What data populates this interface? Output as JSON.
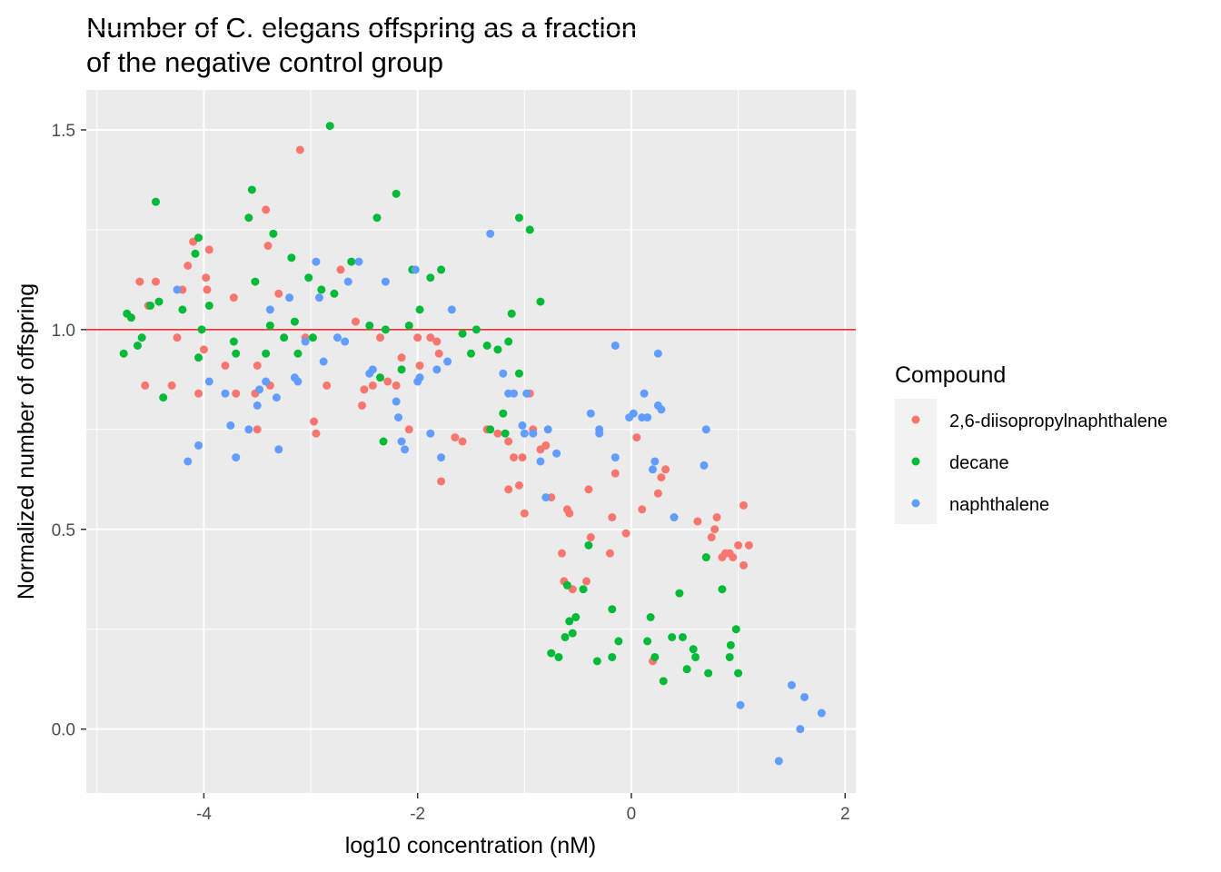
{
  "chart_data": {
    "type": "scatter",
    "title_lines": [
      "Number of C. elegans offspring as a fraction",
      "of the negative control group"
    ],
    "xlabel": "log10 concentration (nM)",
    "ylabel": "Normalized number of offspring",
    "xlim": [
      -5.1,
      2.1
    ],
    "ylim": [
      -0.16,
      1.6
    ],
    "x_ticks": [
      -4,
      -2,
      0,
      2
    ],
    "x_tick_labels": [
      "-4",
      "-2",
      "0",
      "2"
    ],
    "y_ticks": [
      0.0,
      0.5,
      1.0,
      1.5
    ],
    "y_tick_labels": [
      "0.0",
      "0.5",
      "1.0",
      "1.5"
    ],
    "grid": true,
    "reference_line": {
      "y": 1.0,
      "color": "#e41a1c"
    },
    "legend": {
      "title": "Compound",
      "position": "right"
    },
    "series": [
      {
        "name": "2,6-diisopropylnaphthalene",
        "color": "#F8766D",
        "points": [
          [
            -4.6,
            1.12
          ],
          [
            -4.55,
            0.86
          ],
          [
            -4.52,
            1.06
          ],
          [
            -4.45,
            1.12
          ],
          [
            -4.3,
            0.86
          ],
          [
            -4.25,
            0.98
          ],
          [
            -4.2,
            1.1
          ],
          [
            -4.15,
            1.16
          ],
          [
            -4.1,
            1.22
          ],
          [
            -4.05,
            0.84
          ],
          [
            -4.0,
            0.95
          ],
          [
            -3.98,
            1.13
          ],
          [
            -3.97,
            1.1
          ],
          [
            -3.95,
            1.2
          ],
          [
            -3.8,
            0.91
          ],
          [
            -3.72,
            1.08
          ],
          [
            -3.7,
            0.84
          ],
          [
            -3.52,
            0.84
          ],
          [
            -3.5,
            0.91
          ],
          [
            -3.5,
            0.75
          ],
          [
            -3.42,
            1.3
          ],
          [
            -3.4,
            1.21
          ],
          [
            -3.38,
            0.86
          ],
          [
            -3.3,
            1.09
          ],
          [
            -3.1,
            1.45
          ],
          [
            -3.05,
            0.98
          ],
          [
            -2.97,
            0.77
          ],
          [
            -2.95,
            0.74
          ],
          [
            -2.85,
            0.86
          ],
          [
            -2.72,
            1.15
          ],
          [
            -2.58,
            1.02
          ],
          [
            -2.52,
            0.81
          ],
          [
            -2.5,
            0.85
          ],
          [
            -2.42,
            0.86
          ],
          [
            -2.35,
            0.98
          ],
          [
            -2.28,
            0.87
          ],
          [
            -2.2,
            0.86
          ],
          [
            -2.15,
            0.93
          ],
          [
            -2.08,
            0.75
          ],
          [
            -2.0,
            0.98
          ],
          [
            -1.98,
            0.91
          ],
          [
            -1.88,
            0.98
          ],
          [
            -1.82,
            0.97
          ],
          [
            -1.8,
            0.94
          ],
          [
            -1.78,
            0.62
          ],
          [
            -1.65,
            0.73
          ],
          [
            -1.58,
            0.72
          ],
          [
            -1.35,
            0.75
          ],
          [
            -1.25,
            0.74
          ],
          [
            -1.15,
            0.72
          ],
          [
            -1.15,
            0.6
          ],
          [
            -1.1,
            0.68
          ],
          [
            -1.05,
            0.61
          ],
          [
            -1.02,
            0.68
          ],
          [
            -1.0,
            0.54
          ],
          [
            -0.95,
            0.84
          ],
          [
            -0.92,
            0.75
          ],
          [
            -0.85,
            0.7
          ],
          [
            -0.8,
            0.71
          ],
          [
            -0.75,
            0.58
          ],
          [
            -0.65,
            0.44
          ],
          [
            -0.63,
            0.37
          ],
          [
            -0.6,
            0.55
          ],
          [
            -0.58,
            0.54
          ],
          [
            -0.55,
            0.35
          ],
          [
            -0.42,
            0.37
          ],
          [
            -0.38,
            0.48
          ],
          [
            -0.4,
            0.6
          ],
          [
            -0.2,
            0.44
          ],
          [
            -0.18,
            0.53
          ],
          [
            -0.15,
            0.64
          ],
          [
            -0.05,
            0.49
          ],
          [
            0.05,
            0.73
          ],
          [
            0.1,
            0.55
          ],
          [
            0.2,
            0.17
          ],
          [
            0.25,
            0.59
          ],
          [
            0.28,
            0.63
          ],
          [
            0.32,
            0.65
          ],
          [
            0.62,
            0.52
          ],
          [
            0.75,
            0.48
          ],
          [
            0.78,
            0.5
          ],
          [
            0.8,
            0.53
          ],
          [
            0.85,
            0.43
          ],
          [
            0.88,
            0.44
          ],
          [
            0.92,
            0.44
          ],
          [
            0.95,
            0.43
          ],
          [
            1.0,
            0.46
          ],
          [
            1.05,
            0.56
          ],
          [
            1.05,
            0.41
          ],
          [
            1.1,
            0.46
          ]
        ]
      },
      {
        "name": "decane",
        "color": "#00BA38",
        "points": [
          [
            -4.75,
            0.94
          ],
          [
            -4.72,
            1.04
          ],
          [
            -4.68,
            1.03
          ],
          [
            -4.62,
            0.96
          ],
          [
            -4.58,
            0.98
          ],
          [
            -4.5,
            1.06
          ],
          [
            -4.42,
            1.07
          ],
          [
            -4.45,
            1.32
          ],
          [
            -4.38,
            0.83
          ],
          [
            -4.2,
            1.05
          ],
          [
            -4.08,
            1.19
          ],
          [
            -4.05,
            1.23
          ],
          [
            -4.05,
            0.93
          ],
          [
            -4.02,
            1.0
          ],
          [
            -3.95,
            1.06
          ],
          [
            -3.72,
            0.97
          ],
          [
            -3.7,
            0.94
          ],
          [
            -3.58,
            1.28
          ],
          [
            -3.55,
            1.35
          ],
          [
            -3.52,
            1.12
          ],
          [
            -3.42,
            0.94
          ],
          [
            -3.38,
            1.01
          ],
          [
            -3.35,
            1.24
          ],
          [
            -3.25,
            0.98
          ],
          [
            -3.18,
            1.18
          ],
          [
            -3.15,
            1.02
          ],
          [
            -3.12,
            0.94
          ],
          [
            -3.02,
            1.13
          ],
          [
            -2.98,
            0.98
          ],
          [
            -2.9,
            1.1
          ],
          [
            -2.82,
            1.51
          ],
          [
            -2.78,
            1.09
          ],
          [
            -2.62,
            1.17
          ],
          [
            -2.45,
            1.01
          ],
          [
            -2.38,
            1.28
          ],
          [
            -2.35,
            0.88
          ],
          [
            -2.32,
            0.72
          ],
          [
            -2.3,
            1.0
          ],
          [
            -2.2,
            1.34
          ],
          [
            -2.15,
            0.9
          ],
          [
            -2.08,
            1.01
          ],
          [
            -2.05,
            1.15
          ],
          [
            -1.98,
            1.05
          ],
          [
            -1.88,
            1.13
          ],
          [
            -1.78,
            1.15
          ],
          [
            -1.58,
            0.99
          ],
          [
            -1.5,
            0.94
          ],
          [
            -1.45,
            1.0
          ],
          [
            -1.35,
            0.96
          ],
          [
            -1.32,
            0.75
          ],
          [
            -1.25,
            0.95
          ],
          [
            -1.2,
            0.79
          ],
          [
            -1.18,
            0.74
          ],
          [
            -1.15,
            0.97
          ],
          [
            -1.12,
            1.04
          ],
          [
            -1.05,
            0.89
          ],
          [
            -1.05,
            1.28
          ],
          [
            -0.95,
            1.25
          ],
          [
            -0.85,
            1.07
          ],
          [
            -0.75,
            0.19
          ],
          [
            -0.68,
            0.18
          ],
          [
            -0.62,
            0.23
          ],
          [
            -0.6,
            0.36
          ],
          [
            -0.58,
            0.27
          ],
          [
            -0.55,
            0.24
          ],
          [
            -0.52,
            0.28
          ],
          [
            -0.45,
            0.35
          ],
          [
            -0.4,
            0.46
          ],
          [
            -0.32,
            0.17
          ],
          [
            -0.18,
            0.3
          ],
          [
            -0.18,
            0.18
          ],
          [
            -0.12,
            0.22
          ],
          [
            0.15,
            0.22
          ],
          [
            0.18,
            0.28
          ],
          [
            0.22,
            0.18
          ],
          [
            0.3,
            0.12
          ],
          [
            0.38,
            0.23
          ],
          [
            0.45,
            0.34
          ],
          [
            0.48,
            0.23
          ],
          [
            0.52,
            0.15
          ],
          [
            0.58,
            0.2
          ],
          [
            0.6,
            0.18
          ],
          [
            0.7,
            0.43
          ],
          [
            0.72,
            0.14
          ],
          [
            0.85,
            0.35
          ],
          [
            0.92,
            0.18
          ],
          [
            0.93,
            0.21
          ],
          [
            0.98,
            0.25
          ],
          [
            1.0,
            0.14
          ]
        ]
      },
      {
        "name": "naphthalene",
        "color": "#619CFF",
        "points": [
          [
            -4.25,
            1.1
          ],
          [
            -4.15,
            0.67
          ],
          [
            -4.05,
            0.71
          ],
          [
            -3.95,
            0.87
          ],
          [
            -3.8,
            0.84
          ],
          [
            -3.75,
            0.76
          ],
          [
            -3.7,
            0.68
          ],
          [
            -3.58,
            0.75
          ],
          [
            -3.5,
            0.81
          ],
          [
            -3.48,
            0.85
          ],
          [
            -3.42,
            0.87
          ],
          [
            -3.38,
            1.05
          ],
          [
            -3.32,
            0.83
          ],
          [
            -3.3,
            0.7
          ],
          [
            -3.2,
            1.08
          ],
          [
            -3.15,
            0.88
          ],
          [
            -3.12,
            0.87
          ],
          [
            -3.05,
            0.97
          ],
          [
            -2.95,
            1.17
          ],
          [
            -2.92,
            1.08
          ],
          [
            -2.88,
            0.92
          ],
          [
            -2.75,
            0.98
          ],
          [
            -2.68,
            0.97
          ],
          [
            -2.65,
            1.12
          ],
          [
            -2.55,
            1.17
          ],
          [
            -2.45,
            0.89
          ],
          [
            -2.42,
            0.9
          ],
          [
            -2.3,
            1.12
          ],
          [
            -2.2,
            0.82
          ],
          [
            -2.18,
            0.78
          ],
          [
            -2.15,
            0.72
          ],
          [
            -2.12,
            0.7
          ],
          [
            -2.02,
            1.15
          ],
          [
            -2.0,
            0.87
          ],
          [
            -1.98,
            0.88
          ],
          [
            -1.88,
            0.74
          ],
          [
            -1.82,
            0.9
          ],
          [
            -1.78,
            0.68
          ],
          [
            -1.72,
            0.92
          ],
          [
            -1.68,
            1.05
          ],
          [
            -1.32,
            1.24
          ],
          [
            -1.2,
            0.89
          ],
          [
            -1.15,
            0.84
          ],
          [
            -1.1,
            0.84
          ],
          [
            -1.02,
            0.76
          ],
          [
            -1.0,
            0.74
          ],
          [
            -0.98,
            0.84
          ],
          [
            -0.92,
            0.74
          ],
          [
            -0.85,
            0.67
          ],
          [
            -0.8,
            0.58
          ],
          [
            -0.78,
            0.75
          ],
          [
            -0.7,
            0.69
          ],
          [
            -0.38,
            0.79
          ],
          [
            -0.3,
            0.75
          ],
          [
            -0.3,
            0.74
          ],
          [
            -0.15,
            0.96
          ],
          [
            -0.15,
            0.68
          ],
          [
            -0.02,
            0.78
          ],
          [
            0.02,
            0.79
          ],
          [
            0.1,
            0.78
          ],
          [
            0.12,
            0.84
          ],
          [
            0.15,
            0.78
          ],
          [
            0.2,
            0.65
          ],
          [
            0.22,
            0.67
          ],
          [
            0.25,
            0.81
          ],
          [
            0.25,
            0.94
          ],
          [
            0.28,
            0.8
          ],
          [
            0.4,
            0.53
          ],
          [
            0.68,
            0.66
          ],
          [
            0.7,
            0.75
          ],
          [
            1.02,
            0.06
          ],
          [
            1.38,
            -0.08
          ],
          [
            1.5,
            0.11
          ],
          [
            1.58,
            0.0
          ],
          [
            1.62,
            0.08
          ],
          [
            1.78,
            0.04
          ]
        ]
      }
    ]
  }
}
